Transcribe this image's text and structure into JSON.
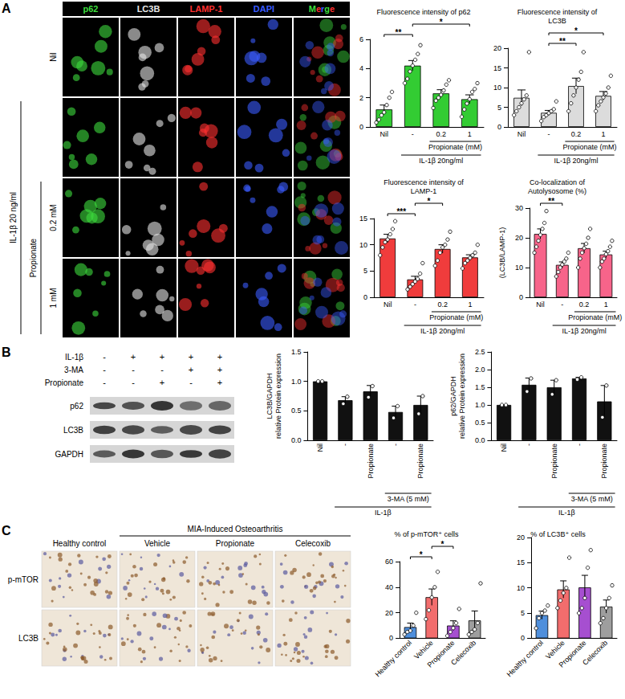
{
  "figure_panels": [
    "A",
    "B",
    "C"
  ],
  "panel_a_images": {
    "columns": [
      {
        "label": "p62",
        "color": "#3ddc3d"
      },
      {
        "label": "LC3B",
        "color": "#e6e6e6"
      },
      {
        "label": "LAMP-1",
        "color": "#ff3030"
      },
      {
        "label": "DAPI",
        "color": "#3a5cff"
      },
      {
        "label": "Merge",
        "colors": [
          "#3ddc3d",
          "#ff3030",
          "#3a5cff"
        ]
      }
    ],
    "row_count": 4,
    "row_labels": [
      {
        "row": 0,
        "text": "Nil"
      },
      {
        "row": 2,
        "text": "0.2 mM"
      },
      {
        "row": 3,
        "text": "1 mM"
      }
    ],
    "row_groups": [
      {
        "rows": [
          1,
          3
        ],
        "text": "IL-1β 20 ng/ml"
      },
      {
        "rows": [
          2,
          3
        ],
        "text": "Propionate"
      }
    ]
  },
  "panel_b_blot": {
    "conditions": [
      {
        "label": "IL-1β",
        "signs": [
          "-",
          "+",
          "+",
          "+",
          "+"
        ]
      },
      {
        "label": "3-MA",
        "signs": [
          "-",
          "-",
          "-",
          "+",
          "+"
        ]
      },
      {
        "label": "Propionate",
        "signs": [
          "-",
          "-",
          "+",
          "-",
          "+"
        ]
      }
    ],
    "bands": [
      "p62",
      "LC3B",
      "GAPDH"
    ]
  },
  "panel_c_ihc": {
    "group_label": "MIA-Induced Osteoarthritis",
    "group_columns": [
      1,
      3
    ],
    "columns": [
      "Healthy control",
      "Vehicle",
      "Propionate",
      "Celecoxib"
    ],
    "rows": [
      "p-mTOR",
      "LC3B"
    ]
  },
  "chart_data": [
    {
      "type": "bar",
      "title": "Fluorescence intensity of p62",
      "categories": [
        "Nil",
        "-",
        "0.2",
        "1"
      ],
      "values": [
        1.2,
        4.2,
        2.3,
        1.9
      ],
      "errors": [
        0.3,
        0.35,
        0.25,
        0.3
      ],
      "points": [
        [
          0.3,
          0.5,
          0.8,
          1.0,
          1.5,
          2.0,
          2.4
        ],
        [
          3.0,
          3.3,
          3.8,
          4.2,
          4.6,
          5.0,
          5.6
        ],
        [
          1.3,
          1.8,
          2.0,
          2.2,
          2.5,
          2.9,
          3.2
        ],
        [
          0.7,
          1.2,
          1.6,
          1.9,
          2.4,
          2.6,
          3.0
        ]
      ],
      "color": "#33cc33",
      "ylim": [
        0,
        6
      ],
      "yticks": [
        0,
        2,
        4,
        6
      ],
      "grid": false,
      "comparisons": [
        {
          "span": [
            0,
            1
          ],
          "label": "**"
        },
        {
          "span": [
            1,
            3
          ],
          "label": "*"
        }
      ],
      "groups": [
        {
          "span": [
            2,
            3
          ],
          "text": "Propionate (mM)"
        },
        {
          "span": [
            1,
            3
          ],
          "text": "IL-1β 20ng/ml"
        }
      ]
    },
    {
      "type": "bar",
      "title": "Fluorescence intensity of LC3B",
      "categories": [
        "Nil",
        "-",
        "0.2",
        "1"
      ],
      "values": [
        7.4,
        3.6,
        10.4,
        7.9
      ],
      "errors": [
        2.0,
        0.6,
        2.0,
        1.1
      ],
      "points": [
        [
          3,
          4,
          5,
          6,
          7,
          8,
          19
        ],
        [
          1.5,
          2.5,
          3,
          3.5,
          4,
          4.5,
          6.5
        ],
        [
          4,
          6,
          8,
          10,
          12,
          14,
          19
        ],
        [
          4,
          5.5,
          6.5,
          7.5,
          8.5,
          10,
          13
        ]
      ],
      "color": "#dcdcdc",
      "ylim": [
        0,
        20
      ],
      "yticks": [
        0,
        5,
        10,
        15,
        20
      ],
      "grid": false,
      "comparisons": [
        {
          "span": [
            1,
            2
          ],
          "label": "**"
        },
        {
          "span": [
            1,
            3
          ],
          "label": "*"
        }
      ],
      "groups": [
        {
          "span": [
            2,
            3
          ],
          "text": "Propionate (mM)"
        },
        {
          "span": [
            1,
            3
          ],
          "text": "IL-1β 20ng/ml"
        }
      ]
    },
    {
      "type": "bar",
      "title": "Fluorescence intensity of LAMP-1",
      "categories": [
        "Nil",
        "-",
        "0.2",
        "1"
      ],
      "values": [
        11.2,
        3.4,
        9.2,
        7.6
      ],
      "errors": [
        0.8,
        0.6,
        0.8,
        0.5
      ],
      "points": [
        [
          8,
          9.5,
          10.5,
          11,
          12,
          13,
          14.5
        ],
        [
          1.5,
          2,
          2.5,
          3,
          3.5,
          4.5,
          6.5
        ],
        [
          6,
          7,
          8.5,
          9.5,
          10,
          11,
          12.5
        ],
        [
          5.5,
          6.5,
          7,
          7.5,
          8,
          8.5,
          10
        ]
      ],
      "color": "#f03c3c",
      "ylim": [
        0,
        15
      ],
      "yticks": [
        0,
        5,
        10,
        15
      ],
      "grid": false,
      "comparisons": [
        {
          "span": [
            0,
            1
          ],
          "label": "***"
        },
        {
          "span": [
            1,
            2
          ],
          "label": "*"
        }
      ],
      "groups": [
        {
          "span": [
            2,
            3
          ],
          "text": "Propionate (mM)"
        },
        {
          "span": [
            1,
            3
          ],
          "text": "IL-1β 20ng/ml"
        }
      ]
    },
    {
      "type": "bar",
      "title": "Co-localization of Autolysosome (%)",
      "y_label": [
        "(LC3B/LAMP-1)"
      ],
      "categories": [
        "Nil",
        "-",
        "0.2",
        "1"
      ],
      "values": [
        21.3,
        10.9,
        16.5,
        14.4
      ],
      "errors": [
        1.7,
        1.0,
        1.6,
        1.1
      ],
      "points": [
        [
          15,
          17,
          19,
          21,
          23,
          25,
          29
        ],
        [
          7,
          8.5,
          10,
          11,
          12,
          13,
          15
        ],
        [
          10,
          13,
          15,
          16.5,
          18,
          20,
          23
        ],
        [
          10,
          12,
          13,
          14.5,
          15.5,
          17,
          19
        ]
      ],
      "color": "#f7648a",
      "ylim": [
        0,
        30
      ],
      "yticks": [
        0,
        10,
        20,
        30
      ],
      "grid": false,
      "comparisons": [
        {
          "span": [
            0,
            1
          ],
          "label": "**"
        }
      ],
      "groups": [
        {
          "span": [
            2,
            3
          ],
          "text": "Propionate (mM)"
        },
        {
          "span": [
            1,
            3
          ],
          "text": "IL-1β 20ng/ml"
        }
      ]
    },
    {
      "type": "bar",
      "y_label": [
        "LC3B/GAPDH",
        "relative Protein expression"
      ],
      "categories": [
        "Nil",
        "-",
        "Propionate",
        "-",
        "Propionate"
      ],
      "values": [
        1.0,
        0.68,
        0.83,
        0.48,
        0.6
      ],
      "errors": [
        0,
        0.06,
        0.1,
        0.1,
        0.15
      ],
      "points": [
        [
          1.0,
          1.0
        ],
        [
          0.62,
          0.74
        ],
        [
          0.73,
          0.92
        ],
        [
          0.38,
          0.58
        ],
        [
          0.45,
          0.75
        ]
      ],
      "color": "#111111",
      "ylim": [
        0,
        1.5
      ],
      "yticks": [
        {
          "value": 0,
          "label": "0.0"
        },
        0.5,
        {
          "value": 1,
          "label": "1.0"
        },
        1.5
      ],
      "grid": false,
      "groups": [
        {
          "span": [
            3,
            4
          ],
          "text": "3-MA (5 mM)"
        },
        {
          "span": [
            1,
            4
          ],
          "text": "IL-1β"
        }
      ]
    },
    {
      "type": "bar",
      "y_label": [
        "p62/GAPDH",
        "relative Protein expression"
      ],
      "categories": [
        "Nil",
        "-",
        "Propionate",
        "-",
        "Propionate"
      ],
      "values": [
        1.0,
        1.57,
        1.5,
        1.75,
        1.1
      ],
      "errors": [
        0,
        0.19,
        0.2,
        0.03,
        0.45
      ],
      "points": [
        [
          1.0,
          1.0
        ],
        [
          1.38,
          1.75
        ],
        [
          1.3,
          1.7
        ],
        [
          1.72,
          1.78
        ],
        [
          0.65,
          1.55
        ]
      ],
      "color": "#111111",
      "ylim": [
        0,
        2.5
      ],
      "yticks": [
        {
          "value": 0,
          "label": "0.0"
        },
        0.5,
        {
          "value": 1,
          "label": "1.0"
        },
        1.5,
        {
          "value": 2,
          "label": "2.0"
        },
        2.5
      ],
      "grid": false,
      "groups": [
        {
          "span": [
            3,
            4
          ],
          "text": "3-MA (5 mM)"
        },
        {
          "span": [
            1,
            4
          ],
          "text": "IL-1β"
        }
      ]
    },
    {
      "type": "bar",
      "title": "% of p-mTOR⁺ cells",
      "categories": [
        "Healthy control",
        "Vehicle",
        "Propionate",
        "Celecoxib"
      ],
      "values": [
        8.8,
        32.2,
        10,
        14
      ],
      "errors": [
        3.1,
        6.4,
        3.7,
        7.4
      ],
      "points": [
        [
          3,
          5,
          6,
          10,
          20
        ],
        [
          15,
          22,
          32,
          40,
          52
        ],
        [
          2,
          5,
          8,
          12,
          23
        ],
        [
          3,
          5,
          7,
          12,
          43
        ]
      ],
      "colors": [
        "#4f8fdc",
        "#f26d6d",
        "#a64fd0",
        "#9e9e9e"
      ],
      "ylim": [
        0,
        60
      ],
      "yticks": [
        0,
        20,
        40,
        60
      ],
      "grid": false,
      "comparisons": [
        {
          "span": [
            0,
            1
          ],
          "label": "*"
        },
        {
          "span": [
            1,
            2
          ],
          "label": "*"
        }
      ]
    },
    {
      "type": "bar",
      "title": "% of LC3B⁺ cells",
      "categories": [
        "Healthy control",
        "Vehicle",
        "Propionate",
        "Celecoxib"
      ],
      "values": [
        4.6,
        9.7,
        10.1,
        6.3
      ],
      "errors": [
        0.8,
        1.7,
        2.4,
        1.3
      ],
      "points": [
        [
          2,
          4,
          5,
          5.5,
          6.5
        ],
        [
          6,
          7.5,
          9,
          10,
          16
        ],
        [
          5,
          6,
          8,
          14,
          17.5
        ],
        [
          3,
          4,
          6,
          8,
          10.5
        ]
      ],
      "colors": [
        "#4f8fdc",
        "#f26d6d",
        "#a64fd0",
        "#9e9e9e"
      ],
      "ylim": [
        0,
        20
      ],
      "yticks": [
        0,
        5,
        10,
        15,
        20
      ],
      "grid": false
    }
  ]
}
